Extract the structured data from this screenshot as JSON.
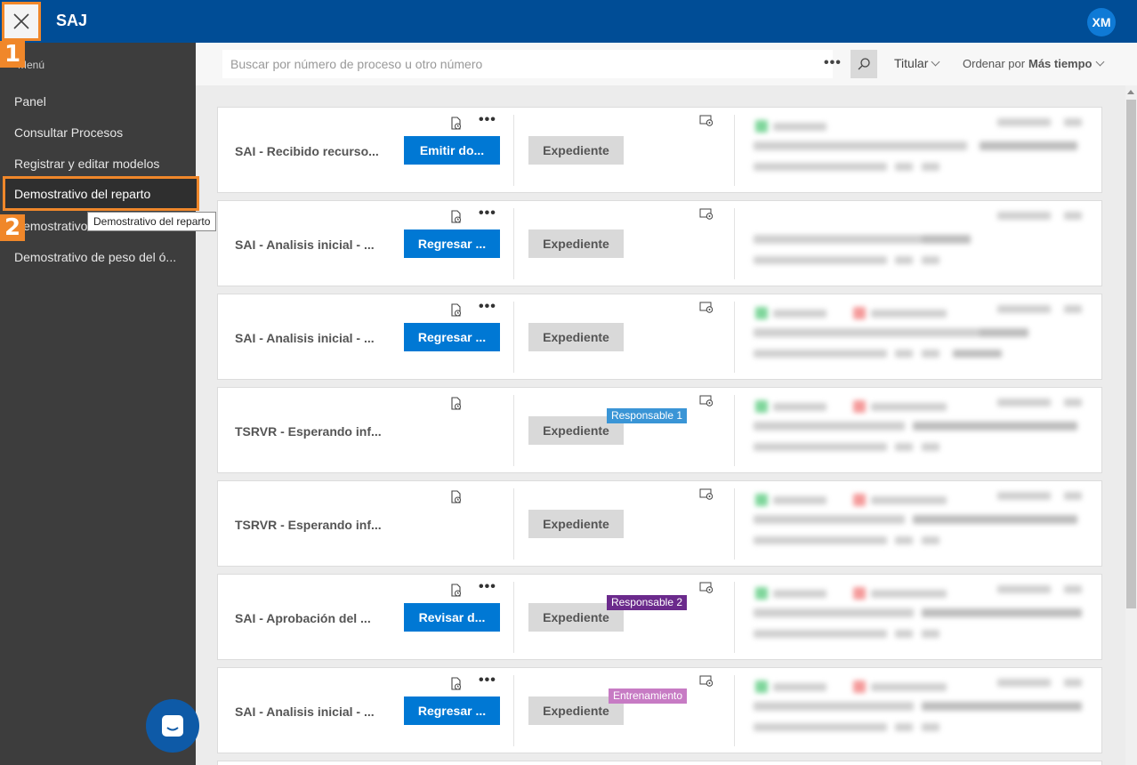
{
  "header": {
    "app_title": "SAJ",
    "avatar_initials": "XM",
    "close_icon": "close-icon"
  },
  "sidebar": {
    "menu_caption": "Menú",
    "items": [
      {
        "label": "Panel"
      },
      {
        "label": "Consultar Procesos"
      },
      {
        "label": "Registrar y editar modelos"
      },
      {
        "label": "Demostrativo del reparto"
      },
      {
        "label": "Demostrativo"
      },
      {
        "label": "Demostrativo de peso del ó..."
      }
    ],
    "tooltip": "Demostrativo del reparto",
    "step_badges": [
      "1",
      "2"
    ]
  },
  "search": {
    "placeholder": "Buscar por número de proceso u otro número",
    "more_label": "•••",
    "owner_filter": "Titular",
    "sort_label": "Ordenar por",
    "sort_value": "Más tiempo"
  },
  "cards": [
    {
      "title": "SAI - Recibido recurso...",
      "action": "Emitir do...",
      "expediente": "Expediente",
      "tag": "",
      "has_more": true
    },
    {
      "title": "SAI - Analisis inicial - ...",
      "action": "Regresar ...",
      "expediente": "Expediente",
      "tag": "",
      "has_more": true
    },
    {
      "title": "SAI - Analisis inicial - ...",
      "action": "Regresar ...",
      "expediente": "Expediente",
      "tag": "",
      "has_more": true
    },
    {
      "title": "TSRVR - Esperando inf...",
      "action": "",
      "expediente": "Expediente",
      "tag": "Responsable 1",
      "tag_color": "#3a95d6",
      "has_more": false
    },
    {
      "title": "TSRVR - Esperando inf...",
      "action": "",
      "expediente": "Expediente",
      "tag": "",
      "has_more": false
    },
    {
      "title": "SAI - Aprobación del ...",
      "action": "Revisar d...",
      "expediente": "Expediente",
      "tag": "Responsable 2",
      "tag_color": "#6b2a8c",
      "has_more": true
    },
    {
      "title": "SAI - Analisis inicial - ...",
      "action": "Regresar ...",
      "expediente": "Expediente",
      "tag": "Entrenamiento",
      "tag_color": "#c77bc4",
      "has_more": true
    }
  ],
  "colors": {
    "topbar": "#004d96",
    "primary": "#0078d4",
    "highlight": "#f0872a",
    "sidebar": "#3d3d3d"
  }
}
